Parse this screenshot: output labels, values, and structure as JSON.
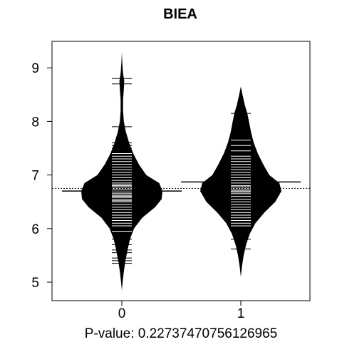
{
  "chart_data": {
    "type": "beanplot",
    "title": "BIEA",
    "xlabel": "P-value: 0.22737470756126965",
    "ylabel": "",
    "categories": [
      "0",
      "1"
    ],
    "y_ticks": [
      5,
      6,
      7,
      8,
      9
    ],
    "ylim": [
      4.7,
      9.5
    ],
    "overall_reference_line": 6.75,
    "groups": [
      {
        "name": "0",
        "mean": 6.7,
        "density": [
          [
            4.85,
            0.0
          ],
          [
            5.0,
            0.02
          ],
          [
            5.2,
            0.05
          ],
          [
            5.4,
            0.09
          ],
          [
            5.6,
            0.14
          ],
          [
            5.8,
            0.2
          ],
          [
            6.0,
            0.3
          ],
          [
            6.2,
            0.5
          ],
          [
            6.4,
            0.82
          ],
          [
            6.55,
            0.98
          ],
          [
            6.7,
            1.0
          ],
          [
            6.85,
            0.92
          ],
          [
            7.0,
            0.6
          ],
          [
            7.2,
            0.42
          ],
          [
            7.4,
            0.28
          ],
          [
            7.6,
            0.18
          ],
          [
            7.8,
            0.1
          ],
          [
            8.0,
            0.05
          ],
          [
            8.2,
            0.03
          ],
          [
            8.4,
            0.03
          ],
          [
            8.6,
            0.05
          ],
          [
            8.75,
            0.06
          ],
          [
            8.9,
            0.03
          ],
          [
            9.1,
            0.01
          ],
          [
            9.3,
            0.0
          ]
        ],
        "observations": [
          5.35,
          5.4,
          5.45,
          5.55,
          5.6,
          5.7,
          5.8,
          5.9,
          5.95,
          6.05,
          6.1,
          6.15,
          6.2,
          6.25,
          6.3,
          6.35,
          6.4,
          6.45,
          6.5,
          6.52,
          6.55,
          6.58,
          6.6,
          6.62,
          6.65,
          6.68,
          6.7,
          6.72,
          6.75,
          6.78,
          6.8,
          6.82,
          6.85,
          6.9,
          6.95,
          7.0,
          7.05,
          7.1,
          7.15,
          7.2,
          7.25,
          7.3,
          7.35,
          7.4,
          7.45,
          7.5,
          7.55,
          7.6,
          7.9,
          8.7,
          8.8
        ]
      },
      {
        "name": "1",
        "mean": 6.87,
        "density": [
          [
            5.1,
            0.0
          ],
          [
            5.3,
            0.03
          ],
          [
            5.5,
            0.07
          ],
          [
            5.7,
            0.13
          ],
          [
            5.9,
            0.22
          ],
          [
            6.1,
            0.36
          ],
          [
            6.3,
            0.58
          ],
          [
            6.5,
            0.85
          ],
          [
            6.7,
            1.0
          ],
          [
            6.85,
            0.95
          ],
          [
            7.0,
            0.7
          ],
          [
            7.2,
            0.55
          ],
          [
            7.4,
            0.42
          ],
          [
            7.6,
            0.32
          ],
          [
            7.8,
            0.25
          ],
          [
            8.0,
            0.2
          ],
          [
            8.15,
            0.16
          ],
          [
            8.3,
            0.1
          ],
          [
            8.5,
            0.04
          ],
          [
            8.65,
            0.0
          ]
        ],
        "observations": [
          5.62,
          5.8,
          5.95,
          6.05,
          6.1,
          6.15,
          6.2,
          6.25,
          6.3,
          6.35,
          6.4,
          6.45,
          6.5,
          6.55,
          6.6,
          6.65,
          6.68,
          6.7,
          6.72,
          6.75,
          6.78,
          6.8,
          6.85,
          6.9,
          6.95,
          7.0,
          7.05,
          7.1,
          7.15,
          7.2,
          7.25,
          7.3,
          7.35,
          7.45,
          7.55,
          7.65,
          7.8,
          8.15
        ]
      }
    ]
  }
}
